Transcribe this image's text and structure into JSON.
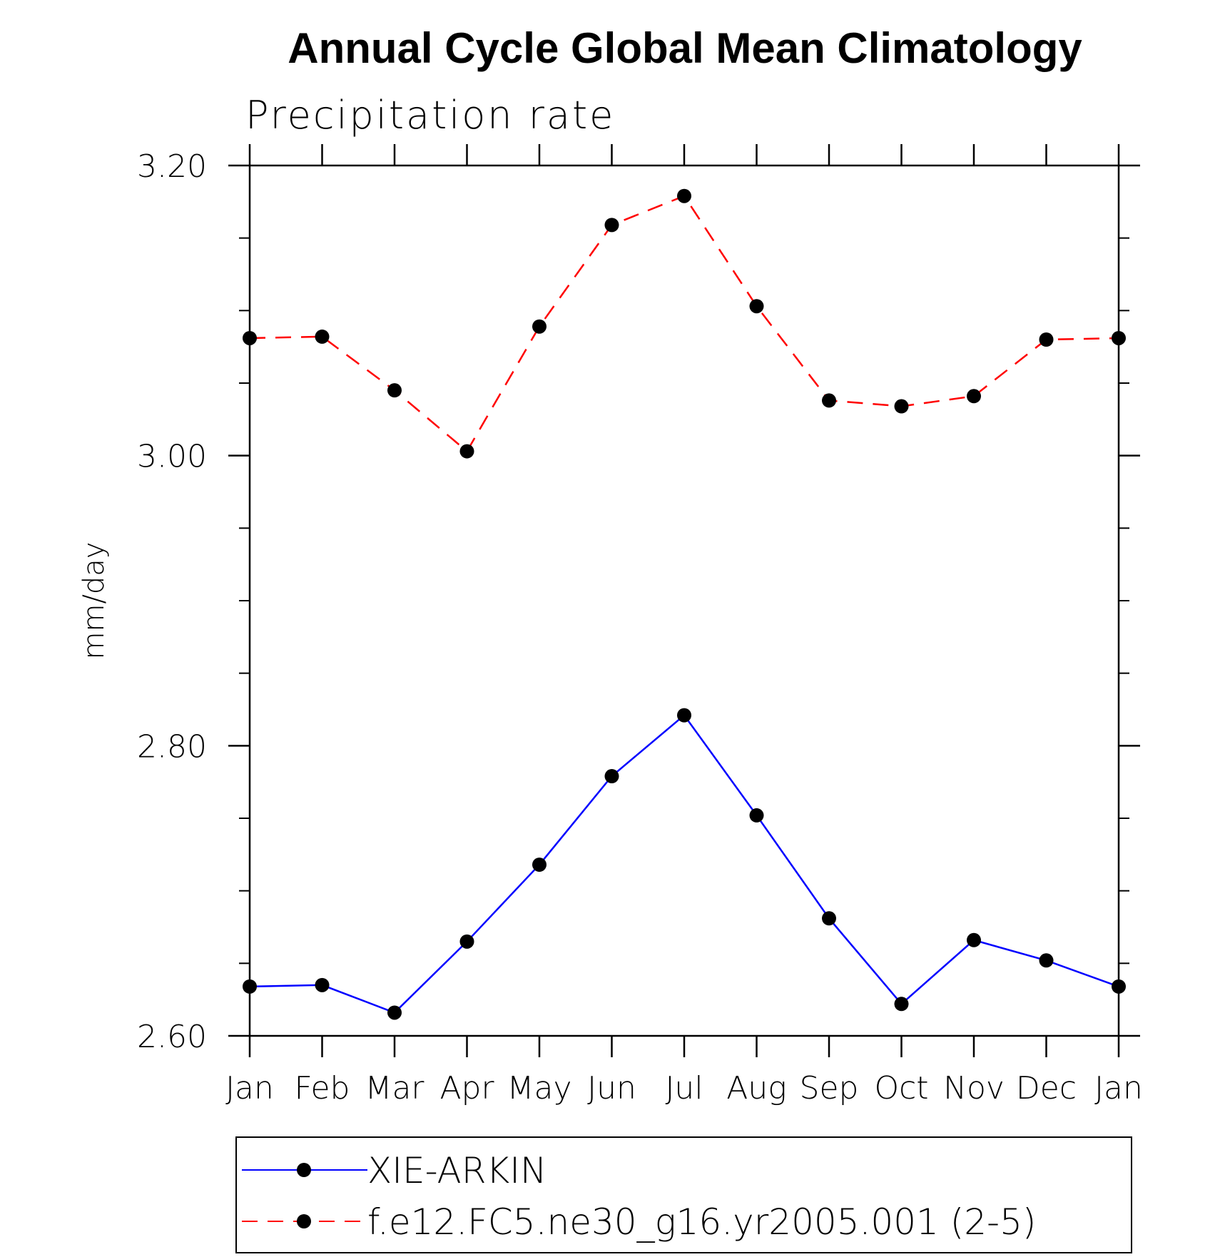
{
  "chart_data": {
    "type": "line",
    "title": "Annual Cycle Global Mean Climatology",
    "subtitle": "Precipitation rate",
    "xlabel": "",
    "ylabel": "mm/day",
    "categories": [
      "Jan",
      "Feb",
      "Mar",
      "Apr",
      "May",
      "Jun",
      "Jul",
      "Aug",
      "Sep",
      "Oct",
      "Nov",
      "Dec",
      "Jan"
    ],
    "ylim": [
      2.6,
      3.2
    ],
    "yticks": [
      "2.60",
      "2.80",
      "3.00",
      "3.20"
    ],
    "yticks_values": [
      2.6,
      2.8,
      3.0,
      3.2
    ],
    "y_minor_step": 0.05,
    "legend_position": "bottom",
    "series": [
      {
        "name": "XIE-ARKIN",
        "color": "#0000ff",
        "style": "solid",
        "marker": "circle",
        "values": [
          2.634,
          2.635,
          2.616,
          2.665,
          2.718,
          2.779,
          2.821,
          2.752,
          2.681,
          2.622,
          2.666,
          2.652,
          2.634
        ]
      },
      {
        "name": "f.e12.FC5.ne30_g16.yr2005.001 (2-5)",
        "color": "#ff0000",
        "style": "dashed",
        "marker": "circle",
        "values": [
          3.081,
          3.082,
          3.045,
          3.003,
          3.089,
          3.159,
          3.179,
          3.103,
          3.038,
          3.034,
          3.041,
          3.08,
          3.081
        ]
      }
    ]
  }
}
